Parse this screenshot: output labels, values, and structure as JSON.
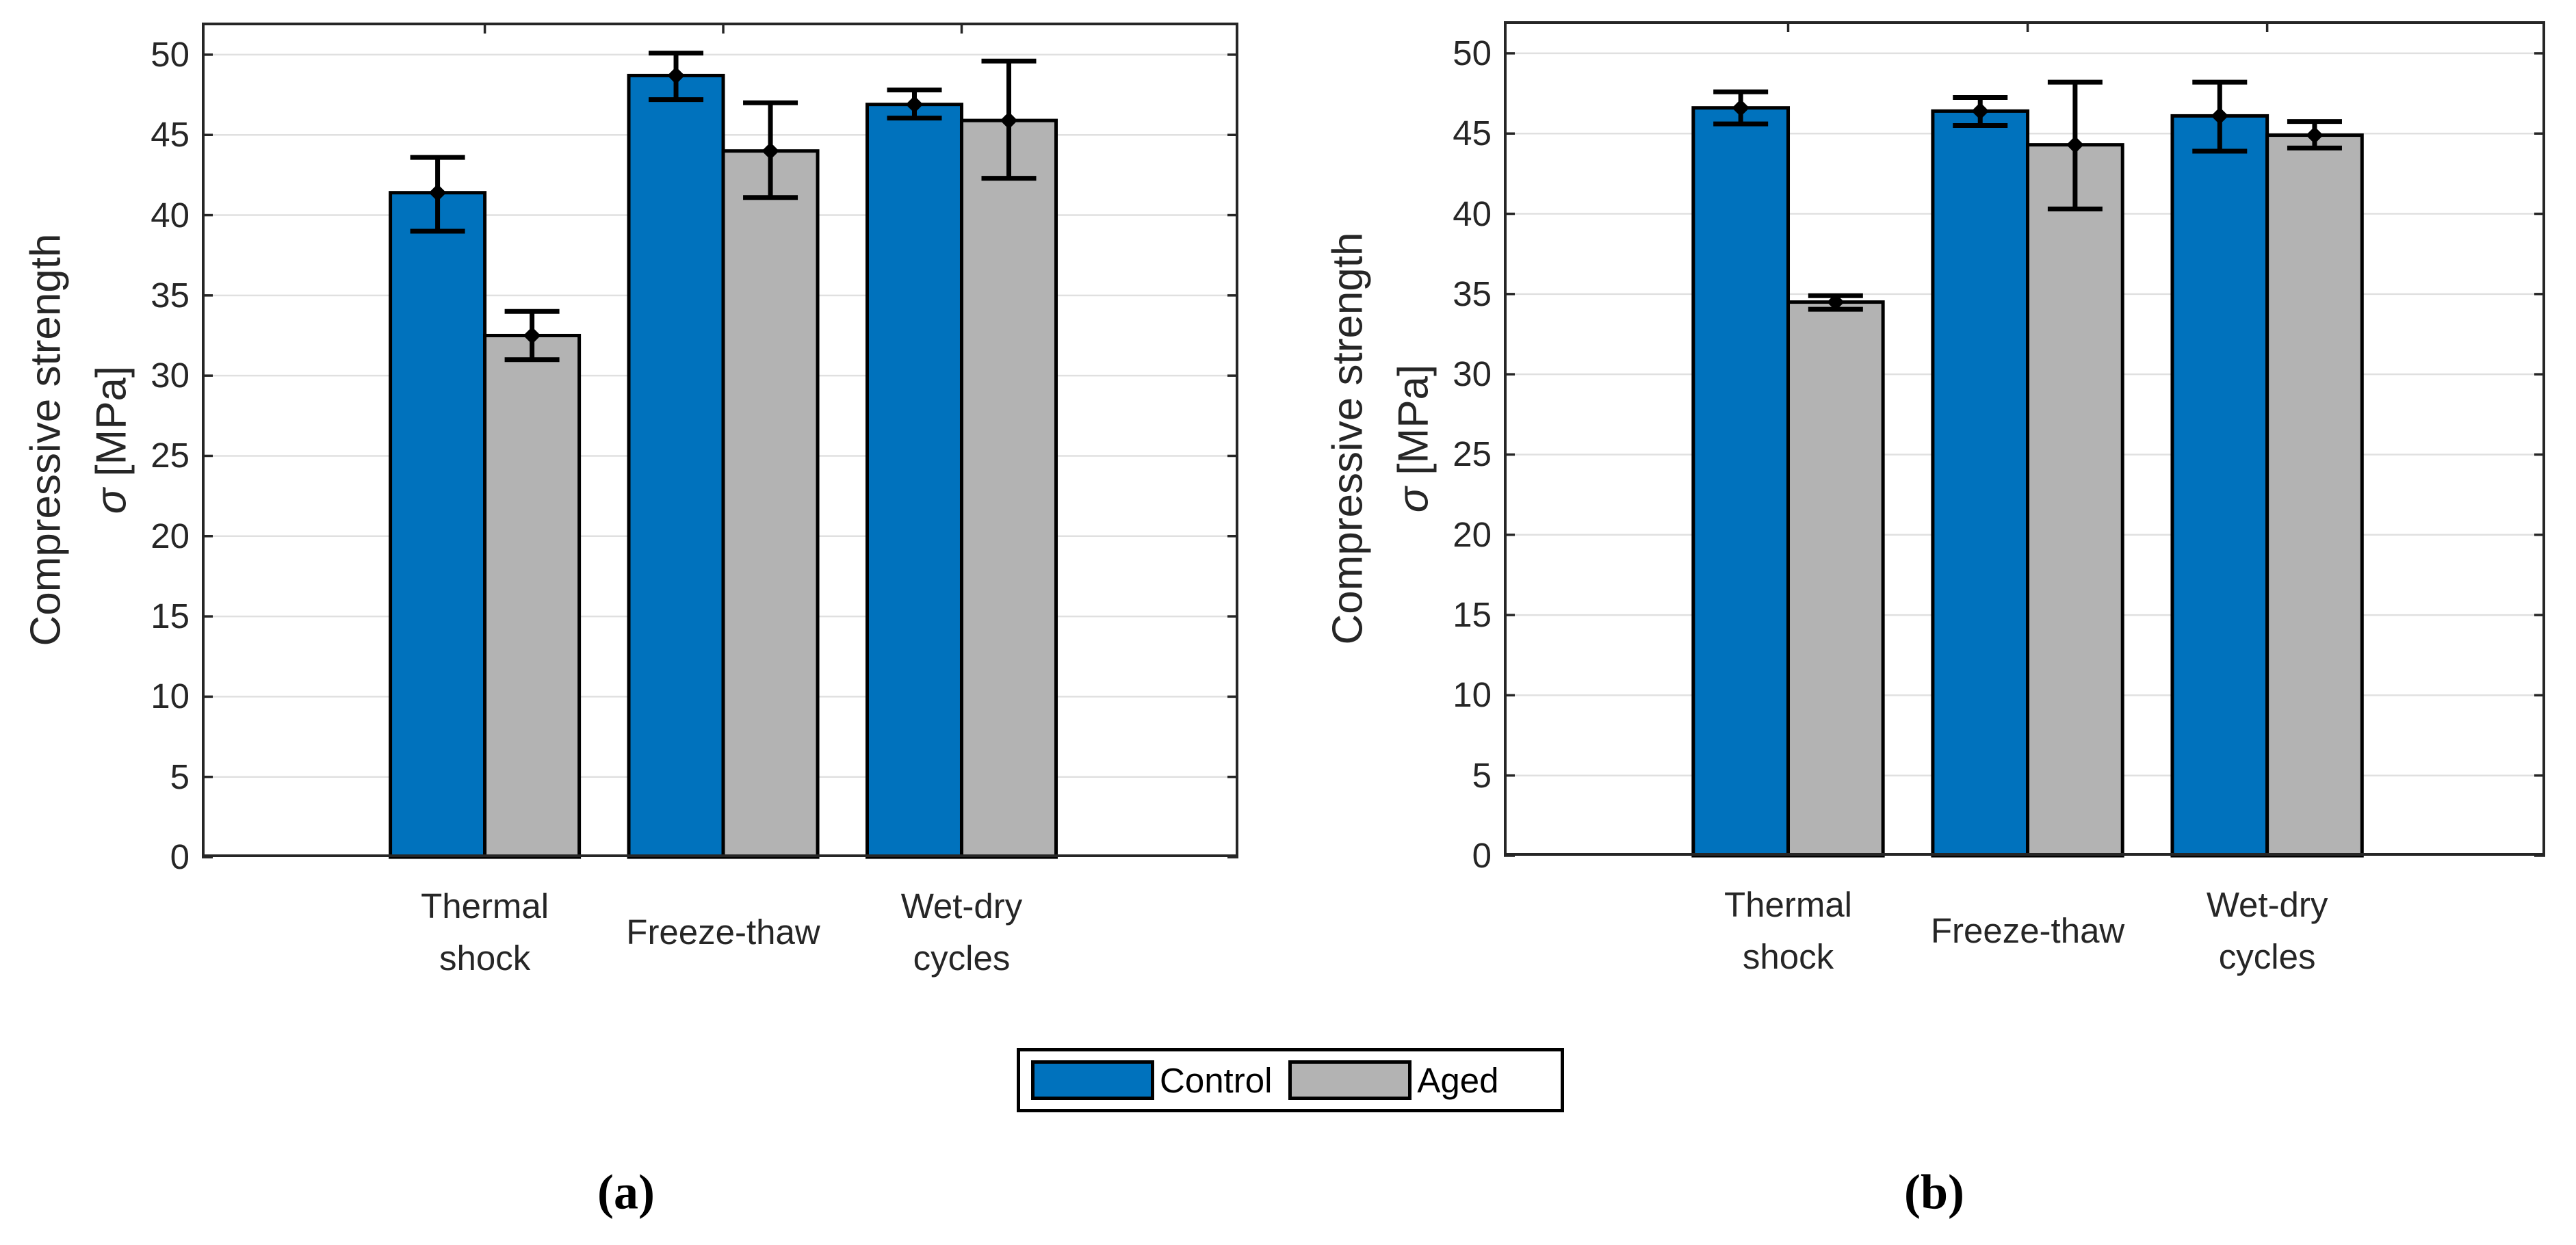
{
  "figure": {
    "bg": "#ffffff",
    "axis_color": "#262626",
    "grid_color": "#e0e0e0",
    "bar_edge_color": "#000000",
    "error_bar_color": "#000000",
    "control_color": "#0072BD",
    "aged_color": "#B3B3B3"
  },
  "legend": {
    "items": [
      {
        "label": "Control",
        "color": "#0072BD"
      },
      {
        "label": "Aged",
        "color": "#B3B3B3"
      }
    ]
  },
  "captions": {
    "a": "(a)",
    "b": "(b)"
  },
  "chart_data": [
    {
      "type": "bar",
      "panel": "a",
      "title": "",
      "xlabel": "",
      "ylabel": "Compressive strength σ [MPa]",
      "ylabel_line1": "Compressive strength",
      "ylabel_sigma": "σ",
      "ylabel_units": " [MPa]",
      "ylim": [
        0,
        52
      ],
      "yticks": [
        0,
        5,
        10,
        15,
        20,
        25,
        30,
        35,
        40,
        45,
        50
      ],
      "grid": "y",
      "legend_position": "below-figure",
      "error_bars": true,
      "categories": [
        "Thermal shock",
        "Freeze-thaw",
        "Wet-dry cycles"
      ],
      "series": [
        {
          "name": "Control",
          "color": "#0072BD",
          "values": [
            41.4,
            48.7,
            46.9
          ],
          "err_minus": [
            2.4,
            1.5,
            0.85
          ],
          "err_plus": [
            2.2,
            1.4,
            0.9
          ]
        },
        {
          "name": "Aged",
          "color": "#B3B3B3",
          "values": [
            32.5,
            44.0,
            45.9
          ],
          "err_minus": [
            1.5,
            2.9,
            3.6
          ],
          "err_plus": [
            1.5,
            3.0,
            3.7
          ]
        }
      ]
    },
    {
      "type": "bar",
      "panel": "b",
      "title": "",
      "xlabel": "",
      "ylabel": "Compressive strength σ [MPa]",
      "ylabel_line1": "Compressive strength",
      "ylabel_sigma": "σ",
      "ylabel_units": " [MPa]",
      "ylim": [
        0,
        52
      ],
      "yticks": [
        0,
        5,
        10,
        15,
        20,
        25,
        30,
        35,
        40,
        45,
        50
      ],
      "grid": "y",
      "legend_position": "below-figure",
      "error_bars": true,
      "categories": [
        "Thermal shock",
        "Freeze-thaw",
        "Wet-dry cycles"
      ],
      "series": [
        {
          "name": "Control",
          "color": "#0072BD",
          "values": [
            46.6,
            46.4,
            46.1
          ],
          "err_minus": [
            1.0,
            0.9,
            2.2
          ],
          "err_plus": [
            1.0,
            0.85,
            2.1
          ]
        },
        {
          "name": "Aged",
          "color": "#B3B3B3",
          "values": [
            34.5,
            44.3,
            44.9
          ],
          "err_minus": [
            0.45,
            4.0,
            0.8
          ],
          "err_plus": [
            0.4,
            3.9,
            0.85
          ]
        }
      ]
    }
  ]
}
